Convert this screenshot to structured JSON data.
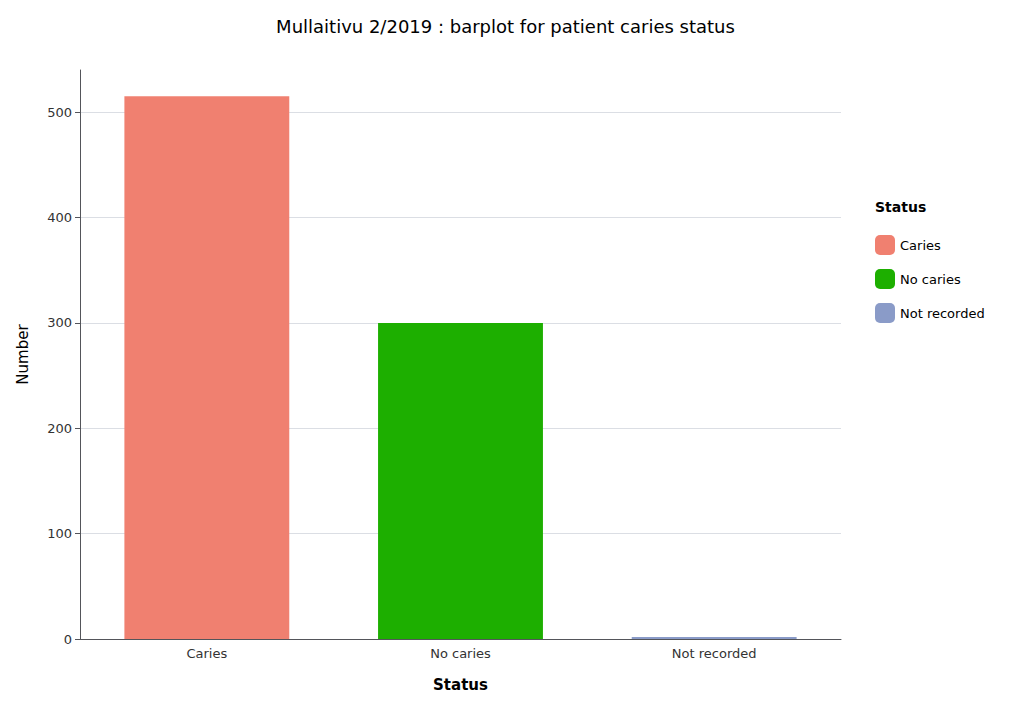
{
  "chart_data": {
    "type": "bar",
    "title": "Mullaitivu 2/2019 : barplot for patient caries status",
    "categories": [
      "Caries",
      "No caries",
      "Not recorded"
    ],
    "values": [
      515,
      300,
      2
    ],
    "colors": [
      "#F08070",
      "#1DAF00",
      "#8A9BC8"
    ],
    "xlabel": "Status",
    "ylabel": "Number",
    "ylim": [
      0,
      540
    ],
    "yticks": [
      0,
      100,
      200,
      300,
      400,
      500
    ],
    "grid": true,
    "legend": "right",
    "legend_title": "Status"
  }
}
